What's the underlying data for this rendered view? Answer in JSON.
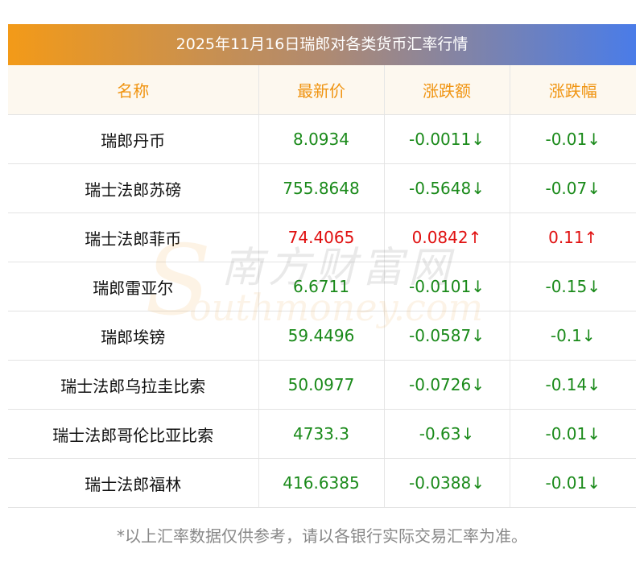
{
  "title": "2025年11月16日瑞郎对各类货币汇率行情",
  "headers": [
    "名称",
    "最新价",
    "涨跌额",
    "涨跌幅"
  ],
  "rows": [
    {
      "name": "瑞郎丹币",
      "price": "8.0934",
      "change": "-0.0011↓",
      "pct": "-0.01↓",
      "dir": "down"
    },
    {
      "name": "瑞士法郎苏磅",
      "price": "755.8648",
      "change": "-0.5648↓",
      "pct": "-0.07↓",
      "dir": "down"
    },
    {
      "name": "瑞士法郎菲币",
      "price": "74.4065",
      "change": "0.0842↑",
      "pct": "0.11↑",
      "dir": "up"
    },
    {
      "name": "瑞郎雷亚尔",
      "price": "6.6711",
      "change": "-0.0101↓",
      "pct": "-0.15↓",
      "dir": "down"
    },
    {
      "name": "瑞郎埃镑",
      "price": "59.4496",
      "change": "-0.0587↓",
      "pct": "-0.1↓",
      "dir": "down"
    },
    {
      "name": "瑞士法郎乌拉圭比索",
      "price": "50.0977",
      "change": "-0.0726↓",
      "pct": "-0.14↓",
      "dir": "down"
    },
    {
      "name": "瑞士法郎哥伦比亚比索",
      "price": "4733.3",
      "change": "-0.63↓",
      "pct": "-0.01↓",
      "dir": "down"
    },
    {
      "name": "瑞士法郎福林",
      "price": "416.6385",
      "change": "-0.0388↓",
      "pct": "-0.01↓",
      "dir": "down"
    }
  ],
  "footnote": "*以上汇率数据仅供参考，请以各银行实际交易汇率为准。",
  "watermark": {
    "cn": "南方财富网",
    "en": "outhmoney.com",
    "s": "S"
  },
  "colors": {
    "up": "#e01010",
    "down": "#1a8a1a",
    "header_text": "#f09411"
  }
}
